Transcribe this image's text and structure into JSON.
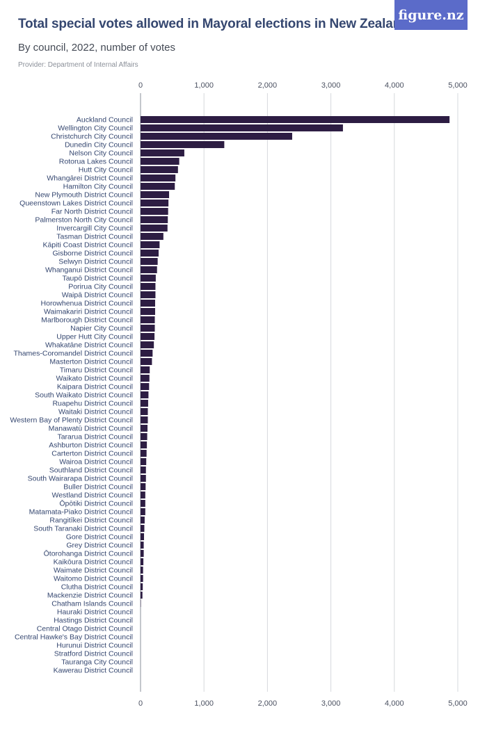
{
  "header": {
    "title": "Total special votes allowed in Mayoral elections in New Zealand",
    "subtitle": "By council, 2022, number of votes",
    "provider": "Provider: Department of Internal Affairs",
    "logo_text": "figure.nz"
  },
  "colors": {
    "bar": "#2d1d43",
    "grid": "#d6d8dc",
    "axis": "#8a8f98",
    "logo_bg": "#5b6bc9"
  },
  "chart_data": {
    "type": "bar",
    "orientation": "horizontal",
    "title": "Total special votes allowed in Mayoral elections in New Zealand",
    "subtitle": "By council, 2022, number of votes",
    "xlabel": "",
    "ylabel": "",
    "xlim": [
      0,
      5000
    ],
    "ticks": [
      0,
      1000,
      2000,
      3000,
      4000,
      5000
    ],
    "tick_labels": [
      "0",
      "1,000",
      "2,000",
      "3,000",
      "4,000",
      "5,000"
    ],
    "grid": true,
    "categories": [
      "Auckland Council",
      "Wellington City Council",
      "Christchurch City Council",
      "Dunedin City Council",
      "Nelson City Council",
      "Rotorua Lakes Council",
      "Hutt City Council",
      "Whangārei District Council",
      "Hamilton City Council",
      "New Plymouth District Council",
      "Queenstown Lakes District Council",
      "Far North District Council",
      "Palmerston North City Council",
      "Invercargill City Council",
      "Tasman District Council",
      "Kāpiti Coast District Council",
      "Gisborne District Council",
      "Selwyn District Council",
      "Whanganui District Council",
      "Taupō District Council",
      "Porirua City Council",
      "Waipā District Council",
      "Horowhenua District Council",
      "Waimakariri District Council",
      "Marlborough District Council",
      "Napier City Council",
      "Upper Hutt City Council",
      "Whakatāne District Council",
      "Thames-Coromandel District Council",
      "Masterton District Council",
      "Timaru District Council",
      "Waikato District Council",
      "Kaipara District Council",
      "South Waikato District Council",
      "Ruapehu District Council",
      "Waitaki District Council",
      "Western Bay of Plenty District Council",
      "Manawatū District Council",
      "Tararua District Council",
      "Ashburton District Council",
      "Carterton District Council",
      "Wairoa District Council",
      "Southland District Council",
      "South Wairarapa District Council",
      "Buller District Council",
      "Westland District Council",
      "Ōpōtiki District Council",
      "Matamata-Piako District Council",
      "Rangitīkei District Council",
      "South Taranaki District Council",
      "Gore District Council",
      "Grey District Council",
      "Ōtorohanga District Council",
      "Kaikōura District Council",
      "Waimate District Council",
      "Waitomo District Council",
      "Clutha District Council",
      "Mackenzie District Council",
      "Chatham Islands Council",
      "Hauraki District Council",
      "Hastings District Council",
      "Central Otago District Council",
      "Central Hawke's Bay District Council",
      "Hurunui District Council",
      "Stratford District Council",
      "Tauranga City Council",
      "Kawerau District Council"
    ],
    "values": [
      4870,
      3190,
      2390,
      1320,
      690,
      610,
      590,
      550,
      540,
      450,
      440,
      435,
      430,
      425,
      360,
      300,
      285,
      270,
      260,
      240,
      235,
      235,
      230,
      230,
      225,
      225,
      220,
      210,
      190,
      180,
      145,
      140,
      135,
      125,
      120,
      115,
      115,
      110,
      105,
      100,
      95,
      90,
      85,
      85,
      80,
      75,
      75,
      75,
      65,
      60,
      55,
      50,
      50,
      45,
      40,
      40,
      35,
      30,
      5,
      0,
      0,
      0,
      0,
      0,
      0,
      0,
      0
    ]
  }
}
